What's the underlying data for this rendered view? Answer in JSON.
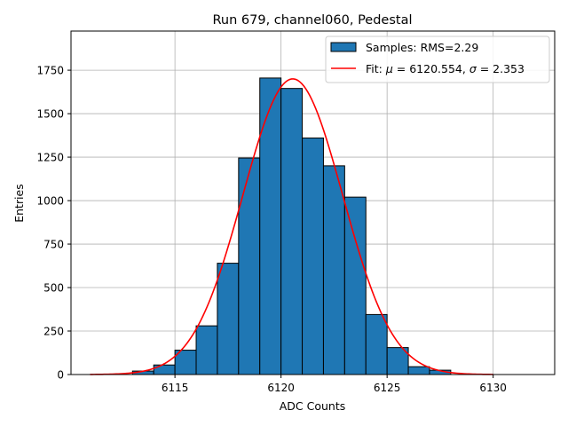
{
  "chart_data": {
    "type": "histogram",
    "title": "Run 679, channel060, Pedestal",
    "xlabel": "ADC Counts",
    "ylabel": "Entries",
    "xlim": [
      6110.1,
      6132.9
    ],
    "ylim": [
      0,
      1975
    ],
    "grid": true,
    "legend_position": "upper right",
    "x_ticks": [
      6115,
      6120,
      6125,
      6130
    ],
    "y_ticks": [
      0,
      250,
      500,
      750,
      1000,
      1250,
      1500,
      1750
    ],
    "bins": {
      "edges": [
        6113,
        6114,
        6115,
        6116,
        6117,
        6118,
        6119,
        6120,
        6121,
        6122,
        6123,
        6124,
        6125,
        6126,
        6127,
        6128
      ],
      "counts": [
        20,
        55,
        140,
        280,
        640,
        1245,
        1705,
        1645,
        1360,
        1200,
        1020,
        345,
        155,
        45,
        25
      ],
      "color": "#1f77b4",
      "edge_color": "#000000",
      "label": "Samples: RMS=2.29"
    },
    "fit": {
      "type": "gaussian",
      "mu": 6120.554,
      "sigma": 2.353,
      "amplitude": 1700,
      "x_range": [
        6111,
        6130
      ],
      "color": "#ff0000",
      "label_prefix": "Fit: ",
      "label_mu": "μ",
      "label_mu_value": " = 6120.554, ",
      "label_sigma": "σ",
      "label_sigma_value": " = 2.353"
    }
  }
}
